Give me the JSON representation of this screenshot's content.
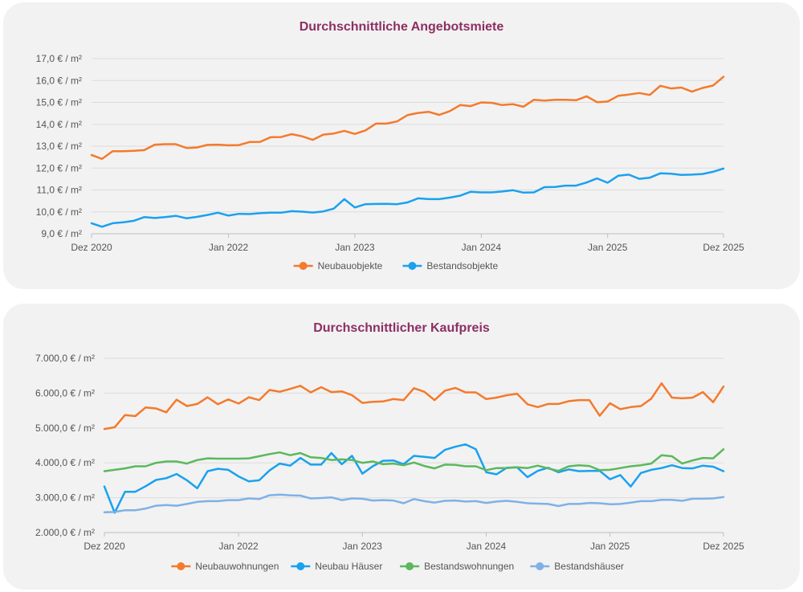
{
  "chart_data": [
    {
      "type": "line",
      "title": "Durchschnittliche Angebotsmiete",
      "xlabel": "",
      "ylabel": "",
      "ylim": [
        9,
        17
      ],
      "yticks": [
        "9,0 € / m²",
        "10,0 € / m²",
        "11,0 € / m²",
        "12,0 € / m²",
        "13,0 € / m²",
        "14,0 € / m²",
        "15,0 € / m²",
        "16,0 € / m²",
        "17,0 € / m²"
      ],
      "xticks": [
        {
          "label": "Dez 2020",
          "index": 0
        },
        {
          "label": "Jan 2022",
          "index": 13
        },
        {
          "label": "Jan 2023",
          "index": 25
        },
        {
          "label": "Jan 2024",
          "index": 37
        },
        {
          "label": "Jan 2025",
          "index": 49
        },
        {
          "label": "Dez 2025",
          "index": 60
        }
      ],
      "n_points": 61,
      "legend_position": "bottom",
      "series": [
        {
          "name": "Neubauobjekte",
          "color": "#f47a2c",
          "values": [
            12.6,
            12.42,
            12.77,
            12.77,
            12.79,
            12.82,
            13.07,
            13.09,
            13.09,
            12.92,
            12.94,
            13.06,
            13.07,
            13.04,
            13.05,
            13.19,
            13.2,
            13.41,
            13.42,
            13.55,
            13.45,
            13.29,
            13.53,
            13.58,
            13.7,
            13.56,
            13.72,
            14.03,
            14.03,
            14.13,
            14.42,
            14.52,
            14.57,
            14.43,
            14.6,
            14.88,
            14.83,
            15.0,
            14.98,
            14.88,
            14.92,
            14.8,
            15.12,
            15.08,
            15.12,
            15.12,
            15.1,
            15.28,
            15.01,
            15.04,
            15.3,
            15.36,
            15.43,
            15.34,
            15.76,
            15.64,
            15.68,
            15.49,
            15.66,
            15.77,
            16.17
          ]
        },
        {
          "name": "Bestandsobjekte",
          "color": "#1aa1ef",
          "values": [
            9.48,
            9.32,
            9.48,
            9.52,
            9.59,
            9.76,
            9.72,
            9.76,
            9.82,
            9.71,
            9.77,
            9.86,
            9.96,
            9.83,
            9.91,
            9.9,
            9.94,
            9.96,
            9.96,
            10.03,
            10.01,
            9.97,
            10.02,
            10.15,
            10.58,
            10.2,
            10.35,
            10.36,
            10.37,
            10.35,
            10.43,
            10.62,
            10.58,
            10.58,
            10.65,
            10.74,
            10.92,
            10.89,
            10.89,
            10.93,
            10.99,
            10.88,
            10.89,
            11.13,
            11.14,
            11.2,
            11.2,
            11.34,
            11.53,
            11.33,
            11.65,
            11.7,
            11.51,
            11.56,
            11.76,
            11.74,
            11.69,
            11.7,
            11.73,
            11.83,
            11.98
          ]
        }
      ]
    },
    {
      "type": "line",
      "title": "Durchschnittlicher Kaufpreis",
      "xlabel": "",
      "ylabel": "",
      "ylim": [
        2000,
        7000
      ],
      "yticks": [
        "2.000,0 € / m²",
        "3.000,0 € / m²",
        "4.000,0 € / m²",
        "5.000,0 € / m²",
        "6.000,0 € / m²",
        "7.000,0 € / m²"
      ],
      "xticks": [
        {
          "label": "Dez 2020",
          "index": 0
        },
        {
          "label": "Jan 2022",
          "index": 13
        },
        {
          "label": "Jan 2023",
          "index": 25
        },
        {
          "label": "Jan 2024",
          "index": 37
        },
        {
          "label": "Jan 2025",
          "index": 49
        },
        {
          "label": "Dez 2025",
          "index": 60
        }
      ],
      "n_points": 61,
      "legend_position": "bottom",
      "series": [
        {
          "name": "Neubauwohnungen",
          "color": "#f47a2c",
          "values": [
            4970,
            5020,
            5370,
            5340,
            5590,
            5560,
            5450,
            5810,
            5630,
            5690,
            5880,
            5680,
            5820,
            5700,
            5880,
            5800,
            6090,
            6040,
            6120,
            6210,
            6020,
            6170,
            6030,
            6050,
            5940,
            5720,
            5750,
            5760,
            5830,
            5800,
            6140,
            6040,
            5800,
            6070,
            6150,
            6020,
            6020,
            5830,
            5870,
            5940,
            5980,
            5680,
            5600,
            5690,
            5690,
            5770,
            5800,
            5800,
            5350,
            5710,
            5540,
            5600,
            5630,
            5840,
            6280,
            5870,
            5850,
            5870,
            6030,
            5740,
            6190
          ]
        },
        {
          "name": "Neubau Häuser",
          "color": "#1aa1ef",
          "values": [
            3320,
            2570,
            3170,
            3170,
            3330,
            3510,
            3560,
            3680,
            3500,
            3270,
            3760,
            3830,
            3800,
            3610,
            3470,
            3500,
            3780,
            3980,
            3920,
            4140,
            3950,
            3950,
            4280,
            3960,
            4200,
            3690,
            3900,
            4060,
            4070,
            3960,
            4200,
            4170,
            4140,
            4370,
            4460,
            4530,
            4390,
            3730,
            3670,
            3860,
            3870,
            3590,
            3770,
            3860,
            3730,
            3810,
            3760,
            3770,
            3770,
            3530,
            3650,
            3320,
            3710,
            3800,
            3850,
            3930,
            3850,
            3840,
            3920,
            3890,
            3760
          ]
        },
        {
          "name": "Bestandswohnungen",
          "color": "#5bb85d",
          "values": [
            3760,
            3800,
            3840,
            3900,
            3900,
            4000,
            4040,
            4040,
            3980,
            4080,
            4130,
            4120,
            4120,
            4120,
            4130,
            4190,
            4250,
            4300,
            4220,
            4280,
            4160,
            4140,
            4080,
            4100,
            4080,
            4000,
            4040,
            3960,
            3980,
            3930,
            4010,
            3910,
            3840,
            3950,
            3940,
            3900,
            3900,
            3790,
            3850,
            3850,
            3870,
            3850,
            3920,
            3840,
            3770,
            3900,
            3930,
            3910,
            3790,
            3800,
            3850,
            3900,
            3930,
            3980,
            4220,
            4190,
            3980,
            4070,
            4140,
            4130,
            4390
          ]
        },
        {
          "name": "Bestandshäuser",
          "color": "#7fb1e6",
          "values": [
            2580,
            2590,
            2640,
            2640,
            2690,
            2770,
            2790,
            2770,
            2820,
            2880,
            2900,
            2900,
            2930,
            2930,
            2980,
            2960,
            3070,
            3090,
            3070,
            3060,
            2980,
            2990,
            3010,
            2930,
            2980,
            2970,
            2920,
            2930,
            2920,
            2840,
            2960,
            2900,
            2860,
            2910,
            2920,
            2890,
            2900,
            2850,
            2890,
            2910,
            2880,
            2840,
            2830,
            2820,
            2760,
            2820,
            2820,
            2850,
            2840,
            2810,
            2820,
            2860,
            2900,
            2900,
            2940,
            2940,
            2910,
            2970,
            2970,
            2980,
            3020
          ]
        }
      ]
    }
  ]
}
